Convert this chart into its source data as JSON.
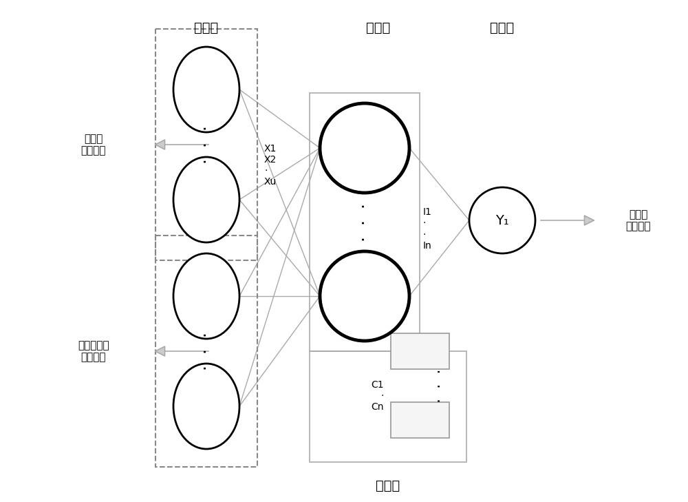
{
  "bg_color": "#ffffff",
  "title_input": "输入层",
  "title_hidden": "隐含层",
  "title_output": "输出层",
  "label_cheng": "承接层",
  "label_left1": "预测日\n气象参数",
  "label_left2": "前一周光伏\n发电功率",
  "label_right": "预测日\n光伏功率",
  "label_x": "X1\nX2\n·\nXu",
  "label_I": "I1\n·\n·\nIn",
  "label_C": "C1\n·\nCn",
  "conn_color": "#aaaaaa",
  "conn_lw": 1.0,
  "dashed_color": "#888888",
  "rect_color": "#aaaaaa",
  "arrow_fill": "#cccccc",
  "arrow_edge": "#aaaaaa",
  "font_size_title": 14,
  "font_size_label": 11,
  "font_size_small": 10,
  "fig_w": 10.0,
  "fig_h": 7.29,
  "dpi": 100
}
